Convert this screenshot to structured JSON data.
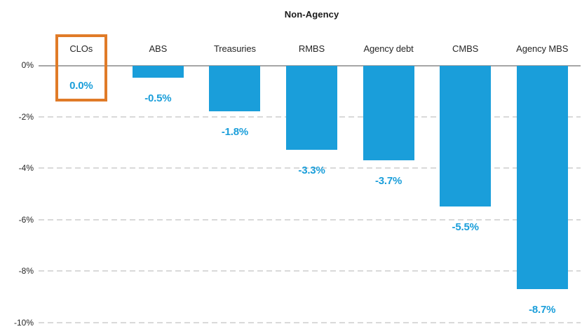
{
  "chart": {
    "title": "Non-Agency"
  },
  "chart_data": {
    "type": "bar",
    "title": "Non-Agency",
    "categories": [
      "CLOs",
      "ABS",
      "Treasuries",
      "RMBS",
      "Agency debt",
      "CMBS",
      "Agency MBS"
    ],
    "values": [
      0.0,
      -0.5,
      -1.8,
      -3.3,
      -3.7,
      -5.5,
      -8.7
    ],
    "value_labels": [
      "0.0%",
      "-0.5%",
      "-1.8%",
      "-3.3%",
      "-3.7%",
      "-5.5%",
      "-8.7%"
    ],
    "y_ticks": [
      "0%",
      "-2%",
      "-4%",
      "-6%",
      "-8%",
      "-10%"
    ],
    "y_tick_values": [
      0,
      -2,
      -4,
      -6,
      -8,
      -10
    ],
    "ylim": [
      -10,
      0
    ],
    "xlabel": "",
    "ylabel": "",
    "grid": "horizontal-dashed",
    "legend": "none",
    "bar_color": "#1A9EDA",
    "value_label_color": "#1A9EDA",
    "gridline_color": "#D9D9D9",
    "zero_line_color": "#A6A6A6",
    "highlight": {
      "category": "CLOs",
      "box_color": "#E07B28"
    }
  }
}
